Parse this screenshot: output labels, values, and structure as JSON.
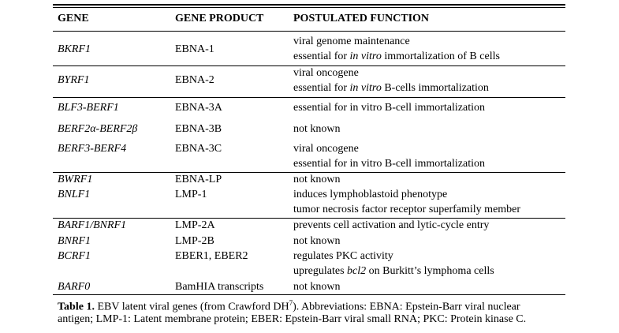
{
  "header": {
    "gene": "GENE",
    "gene_product": "GENE PRODUCT",
    "function": "POSTULATED FUNCTION"
  },
  "rows": [
    {
      "gene": "BKRF1",
      "product": "EBNA-1",
      "function_lines": [
        {
          "pre": "viral genome maintenance",
          "em": "",
          "post": ""
        },
        {
          "pre": "essential for ",
          "em": "in vitro",
          "post": " immortalization of B cells"
        }
      ]
    },
    {
      "gene": "BYRF1",
      "product": "EBNA-2",
      "function_lines": [
        {
          "pre": "viral oncogene",
          "em": "",
          "post": ""
        },
        {
          "pre": "essential for ",
          "em": "in vitro",
          "post": " B-cells immortalization"
        }
      ]
    },
    {
      "gene": "BLF3-BERF1",
      "product": "EBNA-3A",
      "function_lines": [
        {
          "pre": "essential for in vitro B-cell immortalization",
          "em": "",
          "post": ""
        }
      ]
    },
    {
      "gene": "BERF2α-BERF2β",
      "product": "EBNA-3B",
      "function_lines": [
        {
          "pre": "not known",
          "em": "",
          "post": ""
        }
      ]
    },
    {
      "gene": "BERF3-BERF4",
      "product": "EBNA-3C",
      "function_lines": [
        {
          "pre": "viral oncogene",
          "em": "",
          "post": ""
        },
        {
          "pre": "essential for in vitro B-cell immortalization",
          "em": "",
          "post": ""
        }
      ]
    },
    {
      "gene": "BWRF1",
      "product": "EBNA-LP",
      "function_lines": [
        {
          "pre": "not known",
          "em": "",
          "post": ""
        }
      ]
    },
    {
      "gene": "BNLF1",
      "product": "LMP-1",
      "function_lines": [
        {
          "pre": "induces lymphoblastoid phenotype",
          "em": "",
          "post": ""
        },
        {
          "pre": "tumor necrosis factor receptor superfamily member",
          "em": "",
          "post": ""
        }
      ]
    },
    {
      "gene": "BARF1/BNRF1",
      "product": "LMP-2A",
      "function_lines": [
        {
          "pre": "prevents cell activation and lytic-cycle entry",
          "em": "",
          "post": ""
        }
      ]
    },
    {
      "gene": "BNRF1",
      "product": "LMP-2B",
      "function_lines": [
        {
          "pre": "not known",
          "em": "",
          "post": ""
        }
      ]
    },
    {
      "gene": "BCRF1",
      "product": "EBER1, EBER2",
      "function_lines": [
        {
          "pre": "regulates PKC activity",
          "em": "",
          "post": ""
        },
        {
          "pre": "upregulates ",
          "em": "bcl2",
          "post": " on Burkitt’s lymphoma cells"
        }
      ]
    },
    {
      "gene": "BARF0",
      "product": "BamHIA transcripts",
      "function_lines": [
        {
          "pre": "not known",
          "em": "",
          "post": ""
        }
      ]
    }
  ],
  "caption": {
    "label": "Table 1.",
    "line1_a": " EBV latent viral genes (from Crawford DH",
    "superscript": "7",
    "line1_b": "). Abbreviations: EBNA: Epstein-Barr viral nuclear",
    "line2": "antigen; LMP-1: Latent membrane protein; EBER: Epstein-Barr viral small RNA; PKC: Protein kinase C."
  }
}
